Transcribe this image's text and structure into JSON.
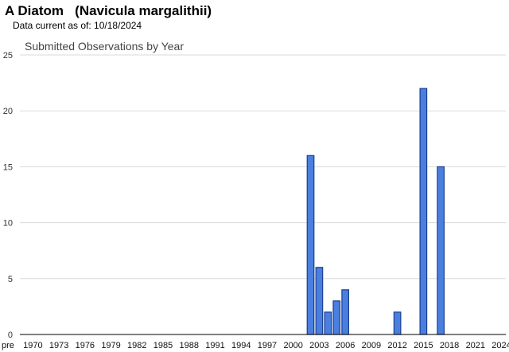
{
  "header": {
    "title": "A Diatom   (Navicula margalithii)",
    "subtitle": "Data current as of: 10/18/2024"
  },
  "chart_data": {
    "type": "bar",
    "title": "Submitted Observations by Year",
    "xlabel": "",
    "ylabel": "",
    "ylim": [
      0,
      25
    ],
    "yticks": [
      0,
      5,
      10,
      15,
      20,
      25
    ],
    "grid": true,
    "categories": [
      "pre",
      "1970",
      "1971",
      "1972",
      "1973",
      "1974",
      "1975",
      "1976",
      "1977",
      "1978",
      "1979",
      "1980",
      "1981",
      "1982",
      "1983",
      "1984",
      "1985",
      "1986",
      "1987",
      "1988",
      "1989",
      "1990",
      "1991",
      "1992",
      "1993",
      "1994",
      "1995",
      "1996",
      "1997",
      "1998",
      "1999",
      "2000",
      "2001",
      "2002",
      "2003",
      "2004",
      "2005",
      "2006",
      "2007",
      "2008",
      "2009",
      "2010",
      "2011",
      "2012",
      "2013",
      "2014",
      "2015",
      "2016",
      "2017",
      "2018",
      "2019",
      "2020",
      "2021",
      "2022",
      "2023",
      "2024"
    ],
    "values": [
      0,
      0,
      0,
      0,
      0,
      0,
      0,
      0,
      0,
      0,
      0,
      0,
      0,
      0,
      0,
      0,
      0,
      0,
      0,
      0,
      0,
      0,
      0,
      0,
      0,
      0,
      0,
      0,
      0,
      0,
      0,
      0,
      0,
      16,
      6,
      2,
      3,
      4,
      0,
      0,
      0,
      0,
      0,
      2,
      0,
      0,
      22,
      0,
      15,
      0,
      0,
      0,
      0,
      0,
      0,
      0
    ],
    "tick_labels": [
      "pre",
      "1970",
      "1973",
      "1976",
      "1979",
      "1982",
      "1985",
      "1988",
      "1991",
      "1994",
      "1997",
      "2000",
      "2003",
      "2006",
      "2009",
      "2012",
      "2015",
      "2018",
      "2021",
      "2024"
    ],
    "colors": {
      "bar_fill": "#4a7fe0",
      "bar_stroke": "#1a3d8f",
      "grid": "#d9d9d9",
      "axis": "#000000"
    }
  }
}
